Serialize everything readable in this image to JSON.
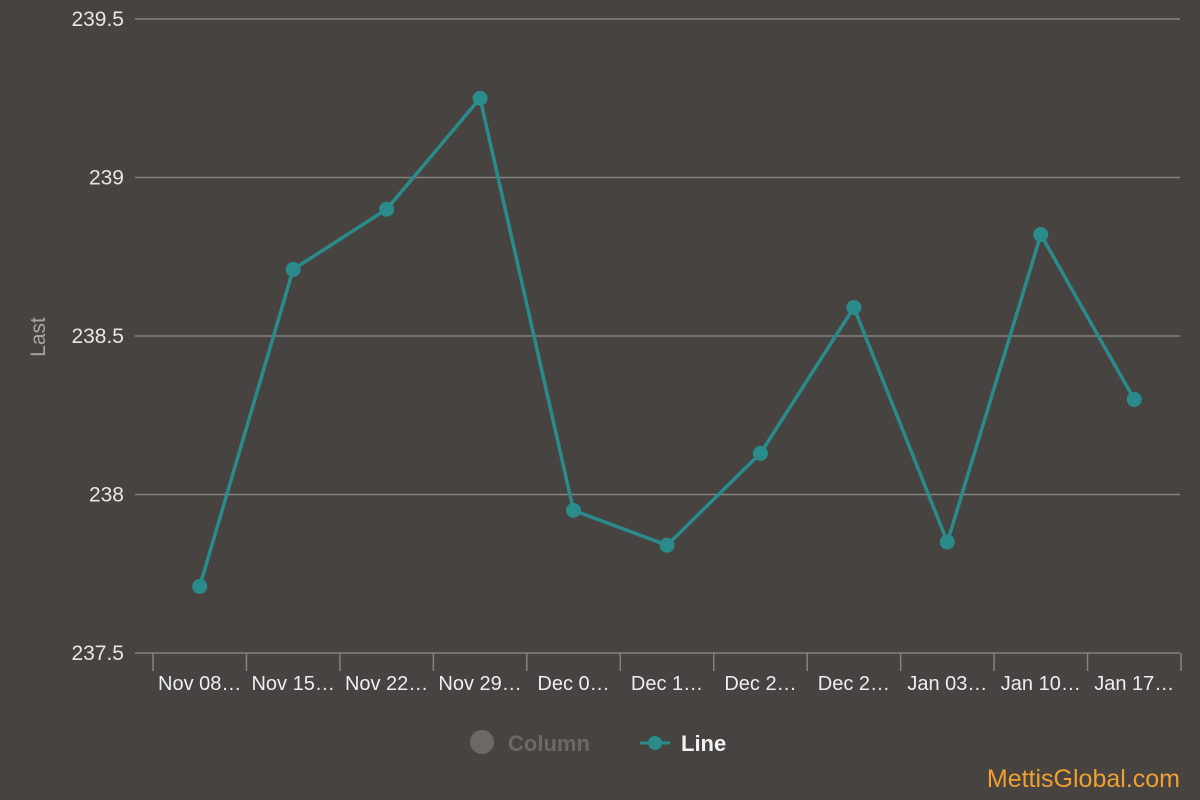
{
  "colors": {
    "background": "#474340",
    "line": "#2a8b8b",
    "grid": "#858280",
    "legend_inactive": "#6b6865",
    "legend_active": "#f2f2f2",
    "watermark": "#f0a030"
  },
  "chart_data": {
    "type": "line",
    "ylabel": "Last",
    "ylim": [
      237.5,
      239.5
    ],
    "yticks": [
      "239.5",
      "239",
      "238.5",
      "238",
      "237.5"
    ],
    "ytick_values": [
      239.5,
      239,
      238.5,
      238,
      237.5
    ],
    "categories": [
      "Nov 08…",
      "Nov 15…",
      "Nov 22…",
      "Nov 29…",
      "Dec 0…",
      "Dec 1…",
      "Dec 2…",
      "Dec 2…",
      "Jan 03…",
      "Jan 10…",
      "Jan 17…"
    ],
    "series": [
      {
        "name": "Line",
        "values": [
          237.71,
          238.71,
          238.9,
          239.25,
          237.95,
          237.84,
          238.13,
          238.59,
          237.85,
          238.82,
          238.3
        ]
      }
    ],
    "grid": true,
    "legend_position": "bottom-center",
    "legend": [
      {
        "label": "Column",
        "state": "hidden",
        "icon": "circle-icon"
      },
      {
        "label": "Line",
        "state": "active",
        "icon": "line-marker-icon"
      }
    ]
  },
  "watermark": "MettisGlobal.com"
}
